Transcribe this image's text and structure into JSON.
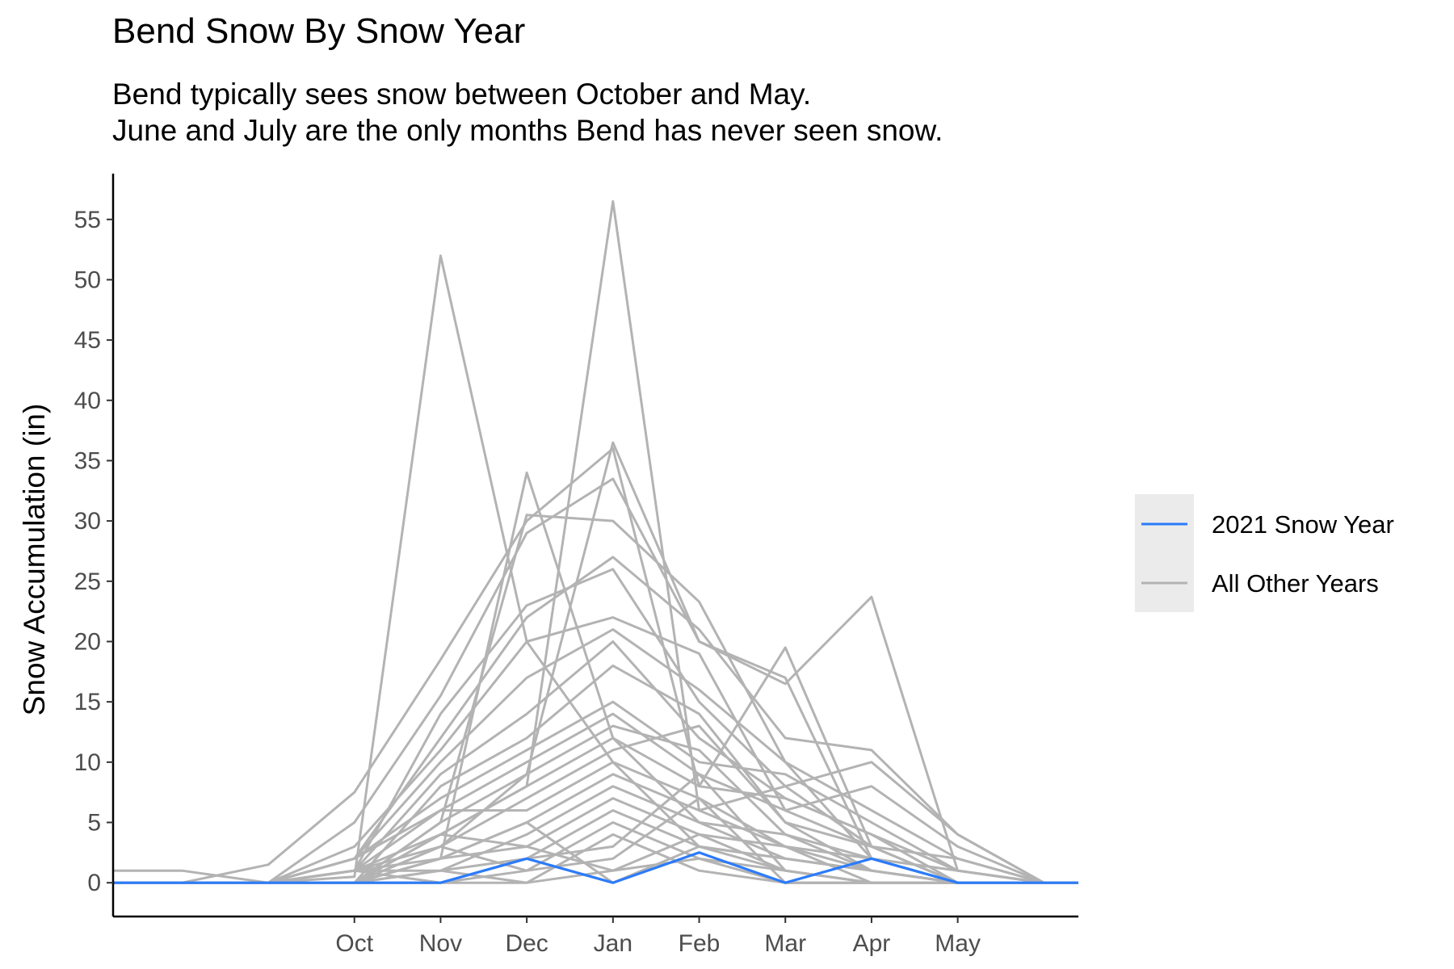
{
  "chart_data": {
    "type": "line",
    "title": "Bend Snow By Snow Year",
    "subtitle": [
      "Bend typically sees snow between October and May.",
      "June and July are the only months Bend has never seen snow."
    ],
    "xlabel": "",
    "ylabel": "Snow Accumulation (in)",
    "x_range": [
      -3.8,
      7.4
    ],
    "ylim": [
      -2.8,
      58.8
    ],
    "month_ticks": [
      {
        "label": "Oct",
        "x": -1
      },
      {
        "label": "Nov",
        "x": 0
      },
      {
        "label": "Dec",
        "x": 1
      },
      {
        "label": "Jan",
        "x": 2
      },
      {
        "label": "Feb",
        "x": 3
      },
      {
        "label": "Mar",
        "x": 4
      },
      {
        "label": "Apr",
        "x": 5
      },
      {
        "label": "May",
        "x": 6
      }
    ],
    "y_ticks": [
      0,
      5,
      10,
      15,
      20,
      25,
      30,
      35,
      40,
      45,
      50,
      55
    ],
    "x_axis_note": "x positions: Aug=-3, Sep=-2, Oct=-1, Nov=0, Dec=1, Jan=2, Feb=3, Mar=4, Apr=5, May=6, Jun=7 (unlabeled months Aug, Sep, Jun)",
    "x": [
      -3,
      -2,
      -1,
      0,
      1,
      2,
      3,
      4,
      5,
      6,
      7
    ],
    "grid": false,
    "legend_position": "right",
    "series": [
      {
        "name": "2021 Snow Year",
        "color": "#2c7bfa",
        "values": [
          0,
          0,
          0,
          0,
          2,
          0,
          2.5,
          0,
          2,
          0,
          0
        ]
      },
      {
        "name": "All Other Years",
        "color": "#b3b3b3",
        "values": [
          1,
          0,
          0.5,
          52,
          20,
          10,
          3,
          1,
          0,
          0,
          0
        ]
      },
      {
        "name": "All Other Years",
        "color": "#b3b3b3",
        "values": [
          0,
          0,
          0,
          4,
          8,
          56.5,
          6,
          3,
          1,
          0,
          0
        ]
      },
      {
        "name": "All Other Years",
        "color": "#b3b3b3",
        "values": [
          0,
          0,
          1,
          3,
          9,
          36.5,
          20,
          17,
          2,
          0,
          0
        ]
      },
      {
        "name": "All Other Years",
        "color": "#b3b3b3",
        "values": [
          0,
          0,
          0,
          2,
          34,
          12,
          5,
          4,
          1,
          0,
          0
        ]
      },
      {
        "name": "All Other Years",
        "color": "#b3b3b3",
        "values": [
          0,
          0,
          0,
          5,
          30.5,
          30,
          23.3,
          10,
          2,
          0,
          0
        ]
      },
      {
        "name": "All Other Years",
        "color": "#b3b3b3",
        "values": [
          0,
          1.5,
          7.5,
          18.5,
          30,
          36,
          8,
          19.5,
          3,
          0,
          0
        ]
      },
      {
        "name": "All Other Years",
        "color": "#b3b3b3",
        "values": [
          0,
          0,
          5,
          15.5,
          29,
          33.5,
          20,
          16.5,
          23.7,
          1,
          0
        ]
      },
      {
        "name": "All Other Years",
        "color": "#b3b3b3",
        "values": [
          0,
          0,
          2,
          12,
          22,
          27,
          21,
          12,
          11,
          4,
          0
        ]
      },
      {
        "name": "All Other Years",
        "color": "#b3b3b3",
        "values": [
          0,
          0,
          1,
          14,
          23,
          26,
          15,
          8,
          10,
          4,
          0
        ]
      },
      {
        "name": "All Other Years",
        "color": "#b3b3b3",
        "values": [
          0,
          0,
          3,
          11,
          20,
          22,
          19,
          6,
          8,
          3,
          0
        ]
      },
      {
        "name": "All Other Years",
        "color": "#b3b3b3",
        "values": [
          0,
          0,
          2,
          10,
          17,
          21,
          16,
          10,
          6,
          2,
          0
        ]
      },
      {
        "name": "All Other Years",
        "color": "#b3b3b3",
        "values": [
          0,
          0,
          1,
          9,
          14,
          20,
          12,
          7,
          4,
          1,
          0
        ]
      },
      {
        "name": "All Other Years",
        "color": "#b3b3b3",
        "values": [
          0,
          0,
          0,
          8,
          12,
          18,
          14,
          5,
          3,
          2,
          0
        ]
      },
      {
        "name": "All Other Years",
        "color": "#b3b3b3",
        "values": [
          0,
          0,
          2,
          7,
          11,
          15,
          10,
          9,
          5,
          1,
          0
        ]
      },
      {
        "name": "All Other Years",
        "color": "#b3b3b3",
        "values": [
          0,
          0,
          1,
          6,
          10,
          14,
          9,
          6,
          3,
          0,
          0
        ]
      },
      {
        "name": "All Other Years",
        "color": "#b3b3b3",
        "values": [
          0,
          0,
          0,
          5,
          9,
          13,
          11,
          4,
          2,
          1,
          0
        ]
      },
      {
        "name": "All Other Years",
        "color": "#b3b3b3",
        "values": [
          0,
          0,
          1,
          4,
          8,
          12,
          8,
          7,
          4,
          0,
          0
        ]
      },
      {
        "name": "All Other Years",
        "color": "#b3b3b3",
        "values": [
          0,
          0,
          0,
          3,
          7,
          11,
          13,
          5,
          1,
          0,
          0
        ]
      },
      {
        "name": "All Other Years",
        "color": "#b3b3b3",
        "values": [
          0,
          0,
          2,
          6,
          6,
          10,
          7,
          3,
          2,
          1,
          0
        ]
      },
      {
        "name": "All Other Years",
        "color": "#b3b3b3",
        "values": [
          0,
          0,
          1,
          2,
          5,
          9,
          6,
          8,
          3,
          0,
          0
        ]
      },
      {
        "name": "All Other Years",
        "color": "#b3b3b3",
        "values": [
          0,
          0,
          0,
          1,
          4,
          8,
          5,
          2,
          1,
          0,
          0
        ]
      },
      {
        "name": "All Other Years",
        "color": "#b3b3b3",
        "values": [
          0,
          0,
          0,
          2,
          3,
          7,
          4,
          1,
          0,
          0,
          0
        ]
      },
      {
        "name": "All Other Years",
        "color": "#b3b3b3",
        "values": [
          0,
          0,
          1,
          1,
          2,
          6,
          3,
          2,
          1,
          0,
          0
        ]
      },
      {
        "name": "All Other Years",
        "color": "#b3b3b3",
        "values": [
          0,
          0,
          0,
          0,
          1,
          5,
          2,
          1,
          0,
          0,
          0
        ]
      },
      {
        "name": "All Other Years",
        "color": "#b3b3b3",
        "values": [
          0,
          0,
          0,
          1,
          0,
          4,
          1,
          0,
          0,
          0,
          0
        ]
      },
      {
        "name": "All Other Years",
        "color": "#b3b3b3",
        "values": [
          0,
          0,
          0,
          0,
          2,
          3,
          9,
          1,
          0,
          0,
          0
        ]
      },
      {
        "name": "All Other Years",
        "color": "#b3b3b3",
        "values": [
          0,
          0,
          0,
          3,
          1,
          2,
          7,
          0,
          0,
          0,
          0
        ]
      },
      {
        "name": "All Other Years",
        "color": "#b3b3b3",
        "values": [
          0,
          0,
          1,
          0,
          0,
          1,
          4,
          3,
          0,
          0,
          0
        ]
      },
      {
        "name": "All Other Years",
        "color": "#b3b3b3",
        "values": [
          0,
          0,
          0,
          2,
          5,
          0,
          3,
          2,
          1,
          0,
          0
        ]
      },
      {
        "name": "All Other Years",
        "color": "#b3b3b3",
        "values": [
          0,
          0,
          0,
          4,
          3,
          1,
          2,
          0,
          0,
          0,
          0
        ]
      }
    ]
  },
  "legend": {
    "items": [
      {
        "label": "2021 Snow Year",
        "color": "#2c7bfa"
      },
      {
        "label": "All Other Years",
        "color": "#b3b3b3"
      }
    ]
  }
}
